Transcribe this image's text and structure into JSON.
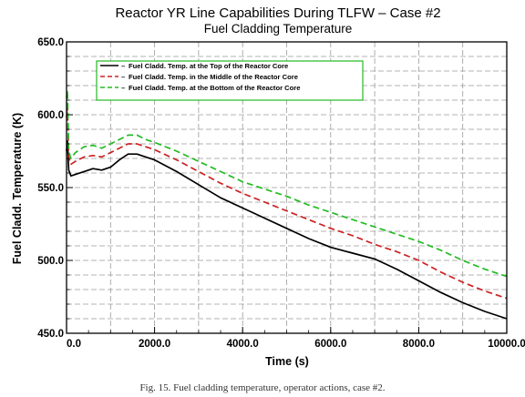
{
  "caption": "Fig. 15.  Fuel cladding temperature, operator actions, case #2.",
  "chart_data": {
    "type": "line",
    "title": "Reactor YR Line Capabilities During TLFW – Case #2",
    "subtitle": "Fuel Cladding Temperature",
    "xlabel": "Time (s)",
    "ylabel": "Fuel Cladd. Temperature (K)",
    "xlim": [
      0,
      10000
    ],
    "ylim": [
      450,
      650
    ],
    "x_ticks": [
      0,
      2000,
      4000,
      6000,
      8000,
      10000
    ],
    "x_tick_labels": [
      "0.0",
      "2000.0",
      "4000.0",
      "6000.0",
      "8000.0",
      "10000.0"
    ],
    "y_ticks": [
      450,
      500,
      550,
      600,
      650
    ],
    "y_tick_labels": [
      "450.0",
      "500.0",
      "550.0",
      "600.0",
      "650.0"
    ],
    "grid": true,
    "legend_position": "top-left",
    "series": [
      {
        "name": "Fuel Cladd. Temp. at the Top of the Reactor Core",
        "color": "#000000",
        "dash": "solid",
        "x": [
          0,
          20,
          50,
          100,
          200,
          400,
          600,
          800,
          1000,
          1200,
          1400,
          1600,
          1800,
          2000,
          2500,
          3000,
          3500,
          4000,
          4500,
          5000,
          5500,
          6000,
          6500,
          7000,
          7500,
          8000,
          8500,
          9000,
          9500,
          10000
        ],
        "y": [
          575,
          582,
          562,
          558,
          559,
          561,
          563,
          562,
          564,
          569,
          573,
          573,
          571,
          569,
          561,
          552,
          543,
          536,
          529,
          522,
          515,
          509,
          505,
          501,
          494,
          486,
          478,
          471,
          465,
          460
        ]
      },
      {
        "name": "Fuel Cladd. Temp. in the Middle of the Reactor Core",
        "color": "#cc2222",
        "dash": "dashed",
        "x": [
          0,
          20,
          50,
          100,
          200,
          400,
          600,
          800,
          1000,
          1200,
          1400,
          1600,
          1800,
          2000,
          2500,
          3000,
          3500,
          4000,
          4500,
          5000,
          5500,
          6000,
          6500,
          7000,
          7500,
          8000,
          8500,
          9000,
          9500,
          10000
        ],
        "y": [
          598,
          606,
          571,
          566,
          568,
          571,
          572,
          571,
          574,
          577,
          580,
          580,
          578,
          576,
          569,
          561,
          553,
          546,
          540,
          534,
          528,
          522,
          517,
          511,
          506,
          500,
          492,
          485,
          479,
          474
        ]
      },
      {
        "name": "Fuel Cladd. Temp. at the Bottom of the Reactor Core",
        "color": "#22bb22",
        "dash": "dashed",
        "x": [
          0,
          20,
          50,
          100,
          200,
          400,
          600,
          800,
          1000,
          1200,
          1400,
          1600,
          1800,
          2000,
          2500,
          3000,
          3500,
          4000,
          4500,
          5000,
          5500,
          6000,
          6500,
          7000,
          7500,
          8000,
          8500,
          9000,
          9500,
          10000
        ],
        "y": [
          612,
          617,
          575,
          570,
          574,
          578,
          579,
          577,
          580,
          583,
          586,
          586,
          583,
          581,
          575,
          568,
          561,
          554,
          549,
          544,
          538,
          533,
          528,
          523,
          518,
          513,
          507,
          500,
          494,
          489
        ]
      }
    ]
  }
}
